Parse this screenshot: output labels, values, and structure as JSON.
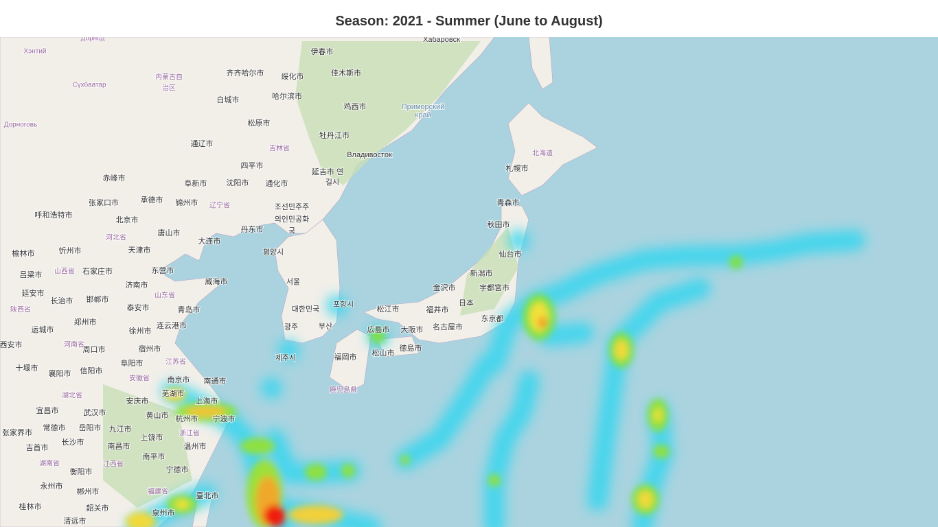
{
  "header": {
    "title": "Season: 2021 - Summer (June to August)"
  },
  "map": {
    "labels": [
      "伊春市",
      "Хабаровск",
      "齐齐哈尔市",
      "绥化市",
      "佳木斯市",
      "白城市",
      "哈尔滨市",
      "鸡西市",
      "Приморский",
      "край",
      "松原市",
      "牡丹江市",
      "通辽市",
      "吉林省",
      "Владивосток",
      "北海道",
      "四平市",
      "札幌市",
      "延吉市 연",
      "길시",
      "赤峰市",
      "阜新市",
      "沈阳市",
      "通化市",
      "张家口市",
      "承德市",
      "锦州市",
      "辽宁省",
      "青森市",
      "조선민주주",
      "의인민공화",
      "국",
      "呼和浩特市",
      "北京市",
      "秋田市",
      "丹东市",
      "河北省",
      "唐山市",
      "大连市",
      "榆林市",
      "忻州市",
      "天津市",
      "평양시",
      "仙台市",
      "吕梁市",
      "山西省",
      "石家庄市",
      "东营市",
      "新潟市",
      "威海市",
      "서울",
      "济南市",
      "金沢市",
      "宇都宮市",
      "延安市",
      "长治市",
      "邯郸市",
      "山东省",
      "포항시",
      "日本",
      "대한민국",
      "泰安市",
      "青岛市",
      "松江市",
      "福井市",
      "陕西省",
      "郑州市",
      "东京都",
      "광주",
      "부산",
      "连云港市",
      "広島市",
      "大阪市",
      "名古屋市",
      "运城市",
      "徐州市",
      "西安市",
      "周口市",
      "宿州市",
      "松山市",
      "徳島市",
      "제주시",
      "福岡市",
      "阜阳市",
      "江苏省",
      "河南省",
      "十堰市",
      "襄阳市",
      "信阳市",
      "鹿児島県",
      "南京市",
      "南通市",
      "安徽省",
      "湖北省",
      "芜湖市",
      "上海市",
      "安庆市",
      "宜昌市",
      "武汉市",
      "黄山市",
      "杭州市",
      "宁波市",
      "张家界市",
      "常德市",
      "岳阳市",
      "九江市",
      "浙江省",
      "上饶市",
      "长沙市",
      "吉首市",
      "南昌市",
      "温州市",
      "湖南省",
      "南平市",
      "宁德市",
      "衡阳市",
      "江西省",
      "永州市",
      "郴州市",
      "福建省",
      "臺北市",
      "桂林市",
      "韶关市",
      "泉州市",
      "清远市",
      "Хэнтий",
      "Сүхбаатар",
      "Дорноговь",
      "Дорнод",
      "内蒙古自",
      "治区"
    ]
  }
}
